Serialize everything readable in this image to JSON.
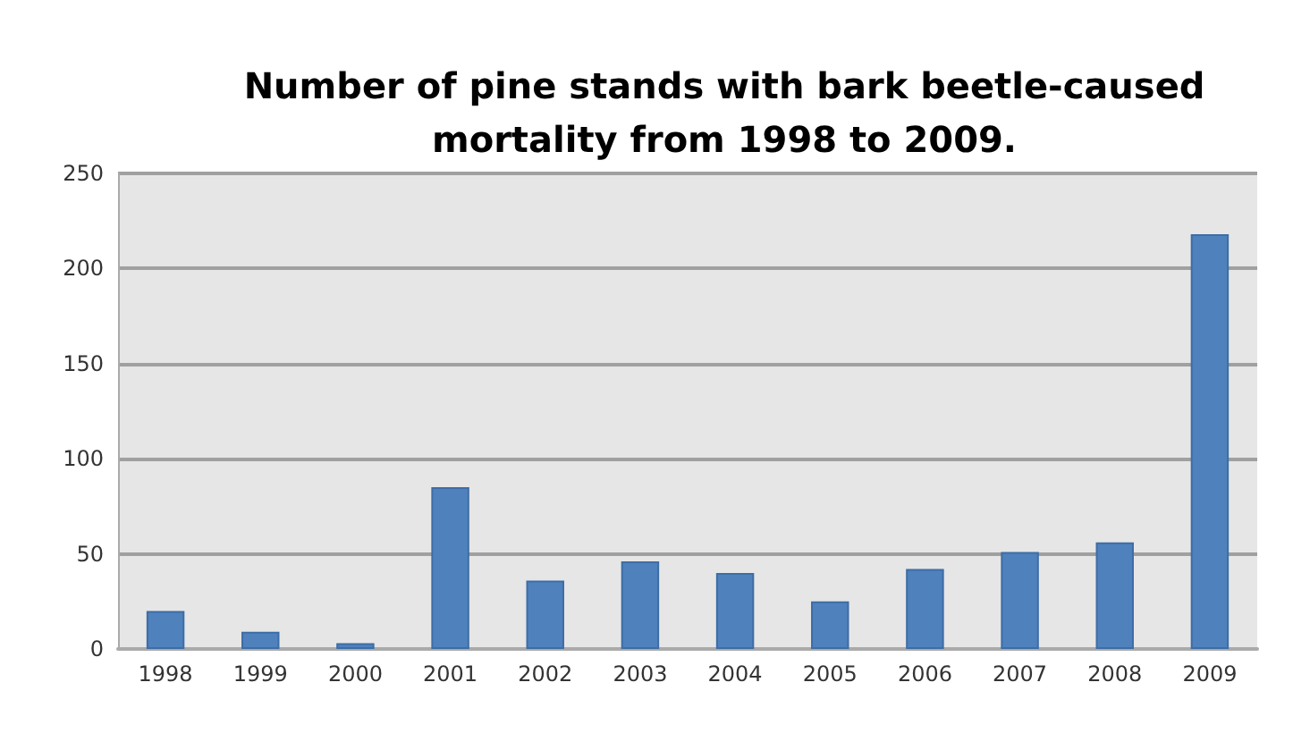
{
  "chart_data": {
    "type": "bar",
    "title": "Number of pine stands with bark beetle-caused\nmortality from 1998 to 2009.",
    "categories": [
      "1998",
      "1999",
      "2000",
      "2001",
      "2002",
      "2003",
      "2004",
      "2005",
      "2006",
      "2007",
      "2008",
      "2009"
    ],
    "values": [
      20,
      9,
      3,
      85,
      36,
      46,
      40,
      25,
      42,
      51,
      56,
      218
    ],
    "color": "#4f81bd",
    "ylim": [
      0,
      250
    ],
    "yticks": [
      0,
      50,
      100,
      150,
      200,
      250
    ],
    "grid": "y"
  }
}
